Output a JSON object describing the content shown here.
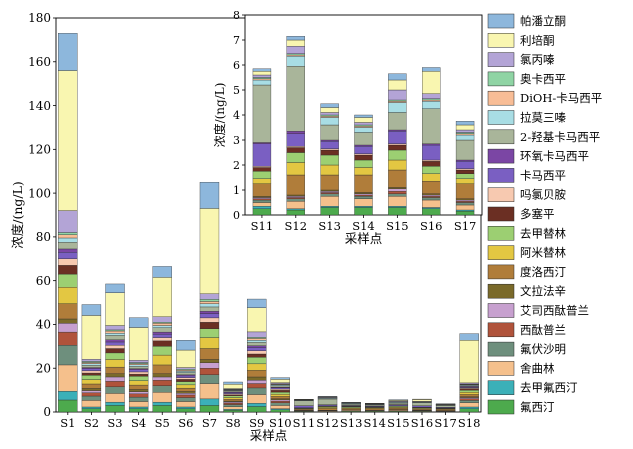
{
  "chart_data": [
    {
      "type": "bar",
      "stacked": true,
      "title": "",
      "xlabel": "采样点",
      "ylabel": "浓度/(ng/L)",
      "ylim": [
        0,
        180
      ],
      "yticks": [
        0,
        20,
        40,
        60,
        80,
        100,
        120,
        140,
        160,
        180
      ],
      "grid": false,
      "categories": [
        "S1",
        "S2",
        "S3",
        "S4",
        "S5",
        "S6",
        "S7",
        "S8",
        "S9",
        "S10",
        "S11",
        "S12",
        "S13",
        "S14",
        "S15",
        "S16",
        "S17",
        "S18"
      ],
      "series": [
        {
          "name": "氟西汀",
          "color": "#4daa4d",
          "values": [
            5.5,
            1.5,
            3.0,
            1.5,
            3.0,
            1.5,
            3.0,
            0.8,
            2.5,
            1.0,
            0.25,
            0.2,
            0.3,
            0.3,
            0.3,
            0.25,
            0.15,
            1.5
          ]
        },
        {
          "name": "去甲氟西汀",
          "color": "#3bb0b8",
          "values": [
            4.0,
            0.8,
            1.5,
            0.8,
            1.5,
            0.8,
            3.0,
            0.4,
            1.5,
            0.5,
            0.1,
            0.05,
            0.05,
            0.05,
            0.05,
            0.05,
            0.05,
            0.8
          ]
        },
        {
          "name": "舍曲林",
          "color": "#f5c08c",
          "values": [
            12.0,
            3.0,
            4.0,
            2.5,
            4.5,
            2.5,
            7.0,
            1.2,
            4.0,
            1.5,
            0.15,
            0.3,
            0.4,
            0.3,
            0.4,
            0.3,
            0.2,
            2.0
          ]
        },
        {
          "name": "氟伏沙明",
          "color": "#6e8f7d",
          "values": [
            9.0,
            2.0,
            3.0,
            2.0,
            3.0,
            1.8,
            4.0,
            1.0,
            3.0,
            1.2,
            0.1,
            0.1,
            0.1,
            0.1,
            0.1,
            0.1,
            0.1,
            1.0
          ]
        },
        {
          "name": "西酞普兰",
          "color": "#b0533b",
          "values": [
            6.0,
            1.5,
            2.5,
            1.5,
            2.5,
            1.2,
            3.0,
            0.7,
            2.0,
            0.8,
            0.05,
            0.05,
            0.05,
            0.05,
            0.1,
            0.05,
            0.05,
            0.8
          ]
        },
        {
          "name": "艾司西酞普兰",
          "color": "#c7a0cf",
          "values": [
            4.0,
            1.0,
            2.0,
            1.0,
            1.5,
            0.8,
            2.5,
            0.5,
            1.5,
            0.6,
            0.05,
            0.05,
            0.05,
            0.05,
            0.1,
            0.05,
            0.05,
            0.5
          ]
        },
        {
          "name": "文拉法辛",
          "color": "#7a6a2a",
          "values": [
            2.0,
            1.0,
            1.5,
            1.0,
            1.5,
            0.8,
            1.5,
            0.4,
            1.5,
            0.5,
            0.05,
            0.05,
            0.05,
            0.05,
            0.05,
            0.05,
            0.05,
            0.4
          ]
        },
        {
          "name": "度洛西汀",
          "color": "#b07d3a",
          "values": [
            7.0,
            2.0,
            3.0,
            2.0,
            4.0,
            1.5,
            5.0,
            0.8,
            3.0,
            1.0,
            0.5,
            0.8,
            0.6,
            0.7,
            0.7,
            0.5,
            0.6,
            1.0
          ]
        },
        {
          "name": "阿米替林",
          "color": "#e3c742",
          "values": [
            7.5,
            2.0,
            3.5,
            2.0,
            4.5,
            1.5,
            5.0,
            0.8,
            3.0,
            1.0,
            0.2,
            0.5,
            0.4,
            0.3,
            0.4,
            0.3,
            0.2,
            1.0
          ]
        },
        {
          "name": "去甲替林",
          "color": "#9ccf72",
          "values": [
            6.0,
            2.0,
            3.0,
            2.0,
            4.0,
            1.5,
            4.0,
            0.8,
            3.0,
            1.0,
            0.3,
            0.4,
            0.4,
            0.3,
            0.4,
            0.3,
            0.2,
            1.0
          ]
        },
        {
          "name": "多塞平",
          "color": "#6b2f23",
          "values": [
            4.0,
            1.0,
            2.0,
            1.0,
            2.5,
            1.0,
            3.0,
            0.5,
            1.5,
            0.8,
            0.15,
            0.2,
            0.2,
            0.2,
            0.2,
            0.2,
            0.15,
            0.6
          ]
        },
        {
          "name": "吗氯贝胺",
          "color": "#f7c9b0",
          "values": [
            3.0,
            1.0,
            1.5,
            1.0,
            1.5,
            0.8,
            2.0,
            0.5,
            1.5,
            0.6,
            0.05,
            0.05,
            0.05,
            0.05,
            0.05,
            0.05,
            0.05,
            0.4
          ]
        },
        {
          "name": "卡马西平",
          "color": "#7a5fc2",
          "values": [
            3.0,
            1.0,
            1.5,
            1.0,
            1.5,
            0.8,
            2.0,
            0.5,
            1.5,
            0.6,
            0.9,
            0.5,
            0.3,
            0.3,
            0.5,
            0.6,
            0.3,
            0.4
          ]
        },
        {
          "name": "环氧卡马西平",
          "color": "#7b46a4",
          "values": [
            1.5,
            0.5,
            1.0,
            0.5,
            1.0,
            0.5,
            1.0,
            0.3,
            0.8,
            0.3,
            0.05,
            0.1,
            0.05,
            0.05,
            0.05,
            0.05,
            0.05,
            0.3
          ]
        },
        {
          "name": "2-羟基卡马西平",
          "color": "#a9b59a",
          "values": [
            3.0,
            1.0,
            2.0,
            1.0,
            2.0,
            1.0,
            2.0,
            0.5,
            1.5,
            0.6,
            2.3,
            2.6,
            0.6,
            0.5,
            0.7,
            1.4,
            0.8,
            0.4
          ]
        },
        {
          "name": "拉莫三嗪",
          "color": "#a8dde4",
          "values": [
            2.0,
            0.8,
            1.0,
            0.8,
            1.0,
            0.6,
            1.5,
            0.3,
            1.0,
            0.4,
            0.2,
            0.4,
            0.3,
            0.2,
            0.4,
            0.3,
            0.2,
            0.3
          ]
        },
        {
          "name": "DiOH-卡马西平",
          "color": "#f8bd96",
          "values": [
            1.5,
            0.5,
            1.0,
            0.5,
            1.0,
            0.5,
            1.0,
            0.2,
            0.8,
            0.3,
            0.05,
            0.05,
            0.05,
            0.05,
            0.05,
            0.05,
            0.05,
            0.2
          ]
        },
        {
          "name": "奥卡西平",
          "color": "#8fd4a4",
          "values": [
            1.0,
            0.5,
            0.5,
            0.5,
            0.5,
            0.4,
            1.0,
            0.2,
            0.5,
            0.2,
            0.05,
            0.05,
            0.05,
            0.05,
            0.05,
            0.05,
            0.05,
            0.2
          ]
        },
        {
          "name": "氯丙嗪",
          "color": "#b3a4d6",
          "values": [
            10.0,
            1.0,
            2.0,
            1.0,
            2.5,
            0.8,
            2.5,
            0.3,
            2.5,
            0.5,
            0.1,
            0.3,
            0.1,
            0.1,
            0.4,
            0.2,
            0.1,
            0.5
          ]
        },
        {
          "name": "利培酮",
          "color": "#f9f6b0",
          "values": [
            64.0,
            20.0,
            15.0,
            15.0,
            18.0,
            8.0,
            39.0,
            2.0,
            11.0,
            1.5,
            0.15,
            0.25,
            0.2,
            0.2,
            0.4,
            0.9,
            0.2,
            19.5
          ]
        },
        {
          "name": "帕潘立酮",
          "color": "#8db7dc",
          "values": [
            17.0,
            5.0,
            4.0,
            4.5,
            5.0,
            4.5,
            12.0,
            1.0,
            4.0,
            0.8,
            0.1,
            0.15,
            0.15,
            0.1,
            0.25,
            0.15,
            0.15,
            3.0
          ]
        }
      ]
    },
    {
      "type": "bar",
      "stacked": true,
      "title": "",
      "xlabel": "采样点",
      "ylabel": "浓度/(ng/L)",
      "ylim": [
        0,
        8
      ],
      "yticks": [
        0,
        1,
        2,
        3,
        4,
        5,
        6,
        7,
        8
      ],
      "grid": false,
      "inset_of": "S11–S17",
      "categories": [
        "S11",
        "S12",
        "S13",
        "S14",
        "S15",
        "S16",
        "S17"
      ]
    }
  ]
}
